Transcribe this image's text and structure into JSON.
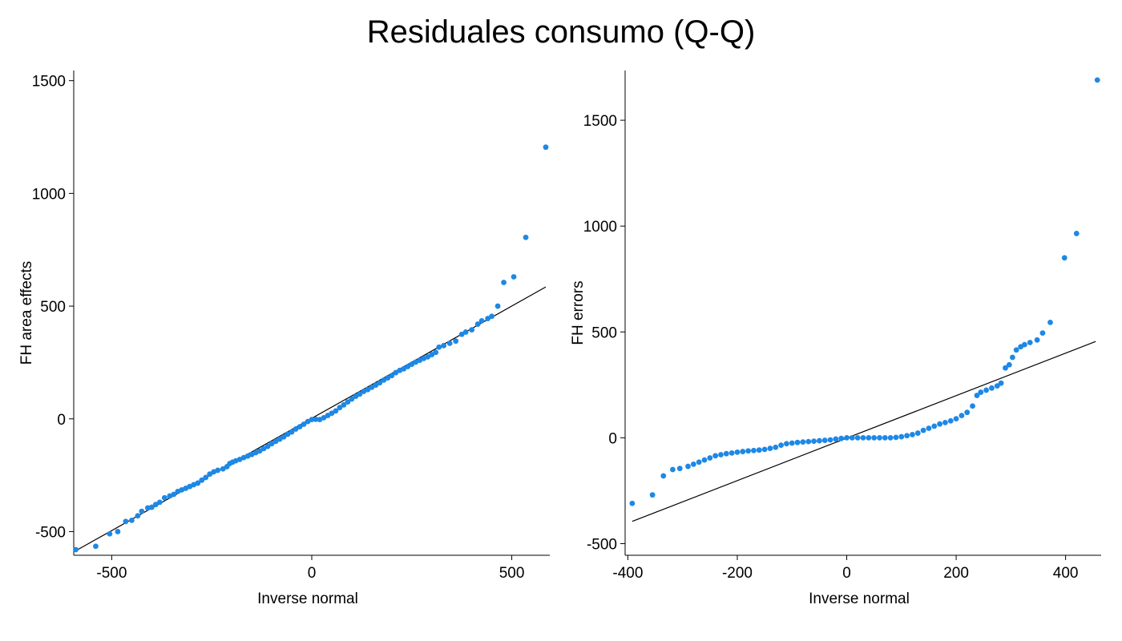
{
  "title": "Residuales consumo (Q-Q)",
  "colors": {
    "points": "#1e88e5",
    "line": "#000000",
    "axes": "#000000"
  },
  "chart_data": [
    {
      "type": "scatter",
      "xlabel": "Inverse normal",
      "ylabel": "FH area effects",
      "xlim": [
        -595,
        595
      ],
      "ylim": [
        -605,
        1545
      ],
      "xticks": [
        -500,
        0,
        500
      ],
      "yticks": [
        -500,
        0,
        500,
        1000,
        1500
      ],
      "reference_line": {
        "x": [
          -590,
          585
        ],
        "y": [
          -585,
          585
        ]
      },
      "grid": false,
      "series": [
        {
          "points": [
            [
              -590,
              -580
            ],
            [
              -540,
              -565
            ],
            [
              -505,
              -510
            ],
            [
              -485,
              -500
            ],
            [
              -465,
              -455
            ],
            [
              -450,
              -450
            ],
            [
              -435,
              -430
            ],
            [
              -425,
              -410
            ],
            [
              -410,
              -395
            ],
            [
              -400,
              -392
            ],
            [
              -390,
              -380
            ],
            [
              -380,
              -370
            ],
            [
              -368,
              -350
            ],
            [
              -355,
              -342
            ],
            [
              -345,
              -335
            ],
            [
              -335,
              -322
            ],
            [
              -325,
              -315
            ],
            [
              -315,
              -308
            ],
            [
              -305,
              -300
            ],
            [
              -295,
              -292
            ],
            [
              -285,
              -285
            ],
            [
              -275,
              -272
            ],
            [
              -265,
              -260
            ],
            [
              -255,
              -245
            ],
            [
              -245,
              -235
            ],
            [
              -235,
              -228
            ],
            [
              -222,
              -222
            ],
            [
              -212,
              -212
            ],
            [
              -205,
              -198
            ],
            [
              -198,
              -192
            ],
            [
              -190,
              -186
            ],
            [
              -180,
              -180
            ],
            [
              -170,
              -172
            ],
            [
              -160,
              -165
            ],
            [
              -150,
              -158
            ],
            [
              -140,
              -150
            ],
            [
              -130,
              -142
            ],
            [
              -120,
              -132
            ],
            [
              -110,
              -122
            ],
            [
              -100,
              -110
            ],
            [
              -90,
              -100
            ],
            [
              -80,
              -90
            ],
            [
              -70,
              -80
            ],
            [
              -60,
              -68
            ],
            [
              -50,
              -58
            ],
            [
              -40,
              -45
            ],
            [
              -30,
              -35
            ],
            [
              -20,
              -24
            ],
            [
              -10,
              -12
            ],
            [
              0,
              -3
            ],
            [
              10,
              -2
            ],
            [
              20,
              -3
            ],
            [
              30,
              5
            ],
            [
              40,
              15
            ],
            [
              50,
              25
            ],
            [
              60,
              35
            ],
            [
              70,
              50
            ],
            [
              80,
              62
            ],
            [
              90,
              75
            ],
            [
              100,
              88
            ],
            [
              110,
              100
            ],
            [
              120,
              110
            ],
            [
              130,
              122
            ],
            [
              140,
              130
            ],
            [
              150,
              140
            ],
            [
              160,
              150
            ],
            [
              170,
              160
            ],
            [
              180,
              172
            ],
            [
              190,
              182
            ],
            [
              200,
              192
            ],
            [
              210,
              205
            ],
            [
              220,
              215
            ],
            [
              230,
              222
            ],
            [
              240,
              232
            ],
            [
              250,
              242
            ],
            [
              260,
              252
            ],
            [
              270,
              260
            ],
            [
              280,
              268
            ],
            [
              290,
              275
            ],
            [
              300,
              285
            ],
            [
              310,
              295
            ],
            [
              318,
              318
            ],
            [
              330,
              325
            ],
            [
              345,
              335
            ],
            [
              360,
              345
            ],
            [
              375,
              375
            ],
            [
              385,
              385
            ],
            [
              400,
              395
            ],
            [
              415,
              420
            ],
            [
              425,
              435
            ],
            [
              440,
              445
            ],
            [
              450,
              455
            ],
            [
              465,
              500
            ],
            [
              480,
              605
            ],
            [
              505,
              630
            ],
            [
              535,
              805
            ],
            [
              585,
              1205
            ]
          ]
        }
      ]
    },
    {
      "type": "scatter",
      "xlabel": "Inverse normal",
      "ylabel": "FH errors",
      "xlim": [
        -405,
        465
      ],
      "ylim": [
        -555,
        1735
      ],
      "xticks": [
        -400,
        -200,
        0,
        200,
        400
      ],
      "yticks": [
        -500,
        0,
        500,
        1000,
        1500
      ],
      "reference_line": {
        "x": [
          -392,
          455
        ],
        "y": [
          -395,
          455
        ]
      },
      "grid": false,
      "series": [
        {
          "points": [
            [
              -392,
              -310
            ],
            [
              -355,
              -270
            ],
            [
              -335,
              -180
            ],
            [
              -318,
              -150
            ],
            [
              -305,
              -145
            ],
            [
              -290,
              -135
            ],
            [
              -280,
              -125
            ],
            [
              -270,
              -115
            ],
            [
              -260,
              -105
            ],
            [
              -250,
              -95
            ],
            [
              -240,
              -85
            ],
            [
              -230,
              -80
            ],
            [
              -220,
              -75
            ],
            [
              -210,
              -72
            ],
            [
              -200,
              -68
            ],
            [
              -190,
              -65
            ],
            [
              -180,
              -62
            ],
            [
              -170,
              -60
            ],
            [
              -160,
              -58
            ],
            [
              -150,
              -55
            ],
            [
              -140,
              -50
            ],
            [
              -130,
              -45
            ],
            [
              -120,
              -35
            ],
            [
              -110,
              -28
            ],
            [
              -100,
              -25
            ],
            [
              -90,
              -22
            ],
            [
              -80,
              -20
            ],
            [
              -70,
              -18
            ],
            [
              -60,
              -16
            ],
            [
              -50,
              -14
            ],
            [
              -40,
              -12
            ],
            [
              -30,
              -10
            ],
            [
              -20,
              -6
            ],
            [
              -10,
              -3
            ],
            [
              0,
              0
            ],
            [
              10,
              0
            ],
            [
              20,
              0
            ],
            [
              30,
              0
            ],
            [
              40,
              0
            ],
            [
              50,
              0
            ],
            [
              60,
              0
            ],
            [
              70,
              0
            ],
            [
              80,
              0
            ],
            [
              90,
              2
            ],
            [
              100,
              5
            ],
            [
              110,
              10
            ],
            [
              120,
              15
            ],
            [
              130,
              22
            ],
            [
              140,
              35
            ],
            [
              150,
              45
            ],
            [
              160,
              55
            ],
            [
              170,
              65
            ],
            [
              180,
              72
            ],
            [
              190,
              80
            ],
            [
              200,
              90
            ],
            [
              210,
              105
            ],
            [
              220,
              120
            ],
            [
              230,
              150
            ],
            [
              238,
              200
            ],
            [
              245,
              215
            ],
            [
              255,
              225
            ],
            [
              265,
              235
            ],
            [
              275,
              245
            ],
            [
              282,
              258
            ],
            [
              290,
              330
            ],
            [
              297,
              345
            ],
            [
              303,
              380
            ],
            [
              310,
              415
            ],
            [
              318,
              430
            ],
            [
              325,
              440
            ],
            [
              335,
              450
            ],
            [
              348,
              462
            ],
            [
              358,
              495
            ],
            [
              372,
              545
            ],
            [
              398,
              850
            ],
            [
              420,
              965
            ],
            [
              458,
              1690
            ]
          ]
        }
      ]
    }
  ]
}
